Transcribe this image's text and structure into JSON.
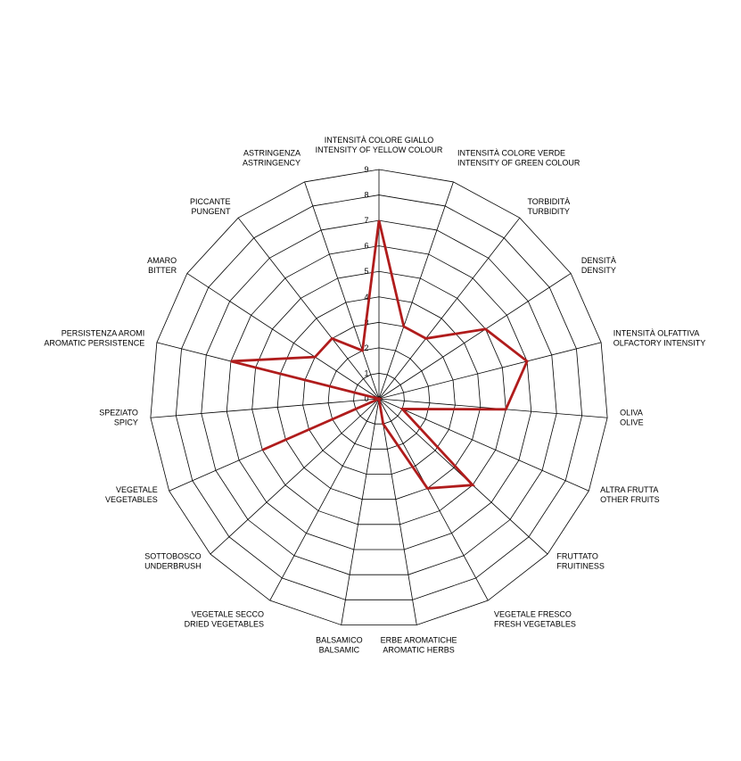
{
  "chart_data": {
    "type": "radar",
    "categories": [
      [
        "INTENSITÀ COLORE GIALLO",
        "INTENSITY OF YELLOW COLOUR"
      ],
      [
        "INTENSITÀ COLORE VERDE",
        "INTENSITY OF GREEN COLOUR"
      ],
      [
        "TORBIDITÀ",
        "TURBIDITY"
      ],
      [
        "DENSITÀ",
        "DENSITY"
      ],
      [
        "INTENSITÀ OLFATTIVA",
        "OLFACTORY INTENSITY"
      ],
      [
        "OLIVA",
        "OLIVE"
      ],
      [
        "ALTRA FRUTTA",
        "OTHER FRUITS"
      ],
      [
        "FRUTTATO",
        "FRUITINESS"
      ],
      [
        "VEGETALE FRESCO",
        "FRESH VEGETABLES"
      ],
      [
        "ERBE AROMATICHE",
        "AROMATIC HERBS"
      ],
      [
        "BALSAMICO",
        "BALSAMIC"
      ],
      [
        "VEGETALE SECCO",
        "DRIED VEGETABLES"
      ],
      [
        "SOTTOBOSCO",
        "UNDERBRUSH"
      ],
      [
        "VEGETALE",
        "VEGETABLES"
      ],
      [
        "SPEZIATO",
        "SPICY"
      ],
      [
        "PERSISTENZA AROMI",
        "AROMATIC PERSISTENCE"
      ],
      [
        "AMARO",
        "BITTER"
      ],
      [
        "PICCANTE",
        "PUNGENT"
      ],
      [
        "ASTRINGENZA",
        "ASTRINGENCY"
      ]
    ],
    "values": [
      7,
      3,
      3,
      5,
      6,
      5,
      1,
      5,
      4,
      1,
      0,
      0,
      0,
      5,
      0,
      6,
      3,
      3,
      2
    ],
    "color": "#b01c1c",
    "rlim": [
      0,
      9
    ],
    "rticks": [
      0,
      1,
      2,
      3,
      4,
      5,
      6,
      7,
      8,
      9
    ]
  }
}
